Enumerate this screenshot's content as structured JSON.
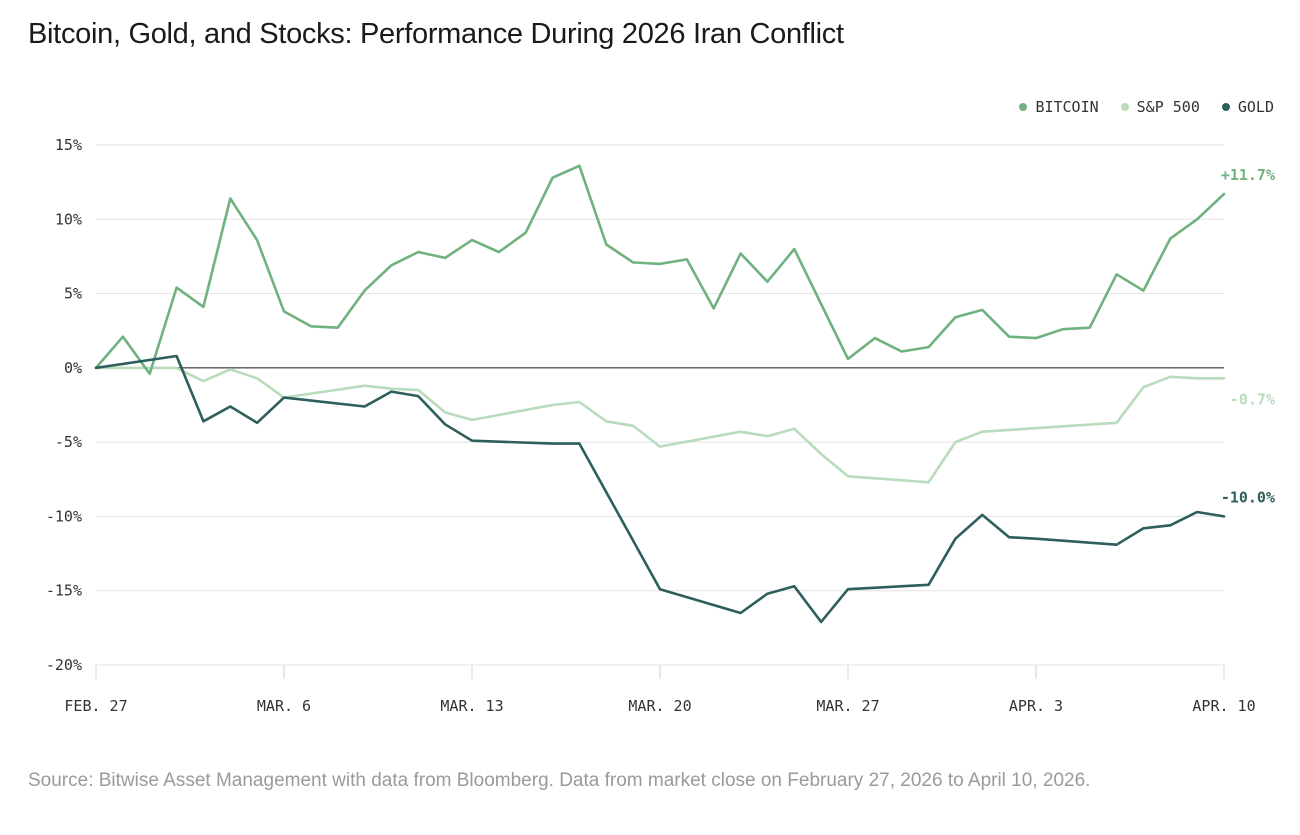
{
  "title": "Bitcoin, Gold, and Stocks: Performance During 2026 Iran Conflict",
  "source": "Source: Bitwise Asset Management with data from Bloomberg. Data from market close on February 27, 2026 to April 10, 2026.",
  "colors": {
    "bitcoin": "#6fb17f",
    "sp500": "#b9dcbc",
    "gold": "#2d5f5c",
    "grid": "#e3e3e3",
    "zero": "#555555"
  },
  "chart_data": {
    "type": "line",
    "title": "Bitcoin, Gold, and Stocks: Performance During 2026 Iran Conflict",
    "xlabel": "",
    "ylabel": "",
    "ylim": [
      -20,
      15
    ],
    "yticks": [
      15,
      10,
      5,
      0,
      -5,
      -10,
      -15,
      -20
    ],
    "ytick_labels": [
      "15%",
      "10%",
      "5%",
      "0%",
      "-5%",
      "-10%",
      "-15%",
      "-20%"
    ],
    "x_range": [
      0,
      42
    ],
    "x_unit": "days since Feb. 27, 2026",
    "xticks": [
      0,
      7,
      14,
      21,
      28,
      35,
      42
    ],
    "xtick_labels": [
      "FEB. 27",
      "MAR. 6",
      "MAR. 13",
      "MAR. 20",
      "MAR. 27",
      "APR. 3",
      "APR. 10"
    ],
    "grid": true,
    "legend_position": "top-right",
    "legend": [
      "BITCOIN",
      "S&P 500",
      "GOLD"
    ],
    "series": [
      {
        "name": "BITCOIN",
        "color": "#6fb17f",
        "end_label": "+11.7%",
        "x": [
          0,
          1,
          2,
          3,
          4,
          5,
          6,
          7,
          8,
          9,
          10,
          11,
          12,
          13,
          14,
          15,
          16,
          17,
          18,
          19,
          20,
          21,
          22,
          23,
          24,
          25,
          26,
          27,
          28,
          29,
          30,
          31,
          32,
          33,
          34,
          35,
          36,
          37,
          38,
          39,
          40,
          41,
          42
        ],
        "values": [
          0,
          2.1,
          -0.4,
          5.4,
          4.1,
          11.4,
          8.6,
          3.8,
          2.8,
          2.7,
          5.2,
          6.9,
          7.8,
          7.4,
          8.6,
          7.8,
          9.1,
          12.8,
          13.6,
          8.3,
          7.1,
          7.0,
          7.3,
          4.0,
          7.7,
          5.8,
          8.0,
          4.3,
          0.6,
          2.0,
          1.1,
          1.4,
          3.4,
          3.9,
          2.1,
          2.0,
          2.6,
          2.7,
          6.3,
          5.2,
          8.7,
          10.0,
          11.7
        ]
      },
      {
        "name": "S&P 500",
        "color": "#b9dcbc",
        "end_label": "-0.7%",
        "x": [
          0,
          3,
          4,
          5,
          6,
          7,
          10,
          11,
          12,
          13,
          14,
          17,
          18,
          19,
          20,
          21,
          24,
          25,
          26,
          27,
          28,
          31,
          32,
          33,
          38,
          39,
          40,
          41,
          42
        ],
        "values": [
          0,
          0,
          -0.9,
          -0.1,
          -0.7,
          -2.0,
          -1.2,
          -1.4,
          -1.5,
          -3.0,
          -3.5,
          -2.5,
          -2.3,
          -3.6,
          -3.9,
          -5.3,
          -4.3,
          -4.6,
          -4.1,
          -5.8,
          -7.3,
          -7.7,
          -5.0,
          -4.3,
          -3.7,
          -1.3,
          -0.6,
          -0.7,
          -0.7
        ]
      },
      {
        "name": "GOLD",
        "color": "#2d5f5c",
        "end_label": "-10.0%",
        "x": [
          0,
          3,
          4,
          5,
          6,
          7,
          10,
          11,
          12,
          13,
          14,
          17,
          18,
          21,
          24,
          25,
          26,
          27,
          28,
          31,
          32,
          33,
          34,
          35,
          38,
          39,
          40,
          41,
          42
        ],
        "values": [
          0,
          0.8,
          -3.6,
          -2.6,
          -3.7,
          -2.0,
          -2.6,
          -1.6,
          -1.9,
          -3.8,
          -4.9,
          -5.1,
          -5.1,
          -14.9,
          -16.5,
          -15.2,
          -14.7,
          -17.1,
          -14.9,
          -14.6,
          -11.5,
          -9.9,
          -11.4,
          -11.5,
          -11.9,
          -10.8,
          -10.6,
          -9.7,
          -10.0
        ]
      }
    ]
  }
}
